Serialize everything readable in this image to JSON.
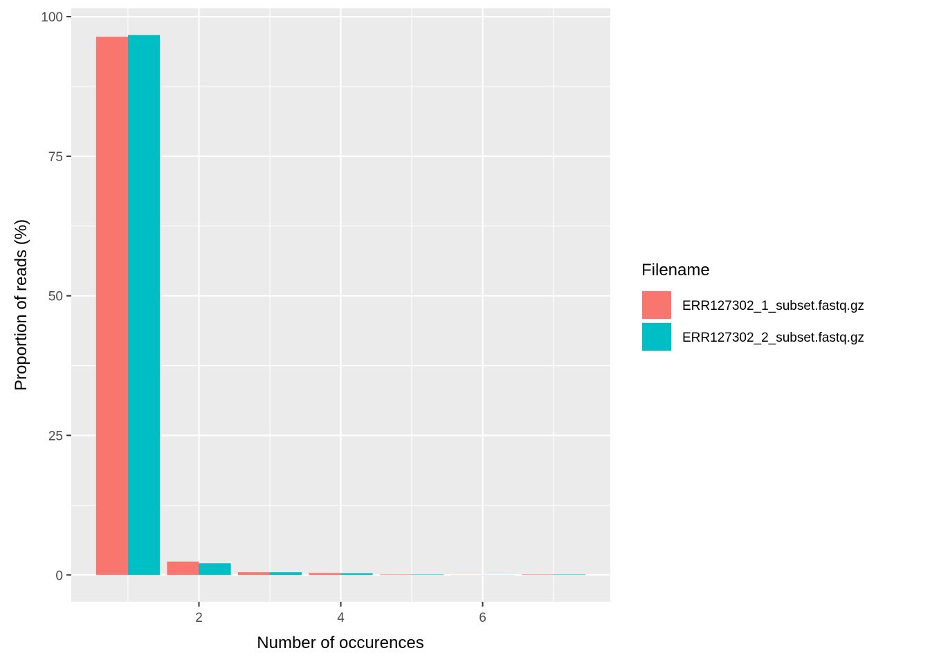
{
  "chart_data": {
    "type": "bar",
    "title": "",
    "xlabel": "Number of occurences",
    "ylabel": "Proportion of reads (%)",
    "x": [
      1,
      2,
      3,
      4,
      5,
      6,
      7
    ],
    "xlim": [
      0.2,
      7.8
    ],
    "ylim": [
      -4.8,
      101.5
    ],
    "x_ticks": [
      2,
      4,
      6
    ],
    "y_ticks": [
      0,
      25,
      50,
      75,
      100
    ],
    "grid": true,
    "legend": {
      "title": "Filename",
      "position": "right"
    },
    "series": [
      {
        "name": "ERR127302_1_subset.fastq.gz",
        "color": "#F8766D",
        "values": [
          96.4,
          2.4,
          0.5,
          0.35,
          0.1,
          0.03,
          0.1
        ]
      },
      {
        "name": "ERR127302_2_subset.fastq.gz",
        "color": "#00BFC4",
        "values": [
          96.7,
          2.1,
          0.5,
          0.3,
          0.1,
          0.03,
          0.1
        ]
      }
    ]
  }
}
